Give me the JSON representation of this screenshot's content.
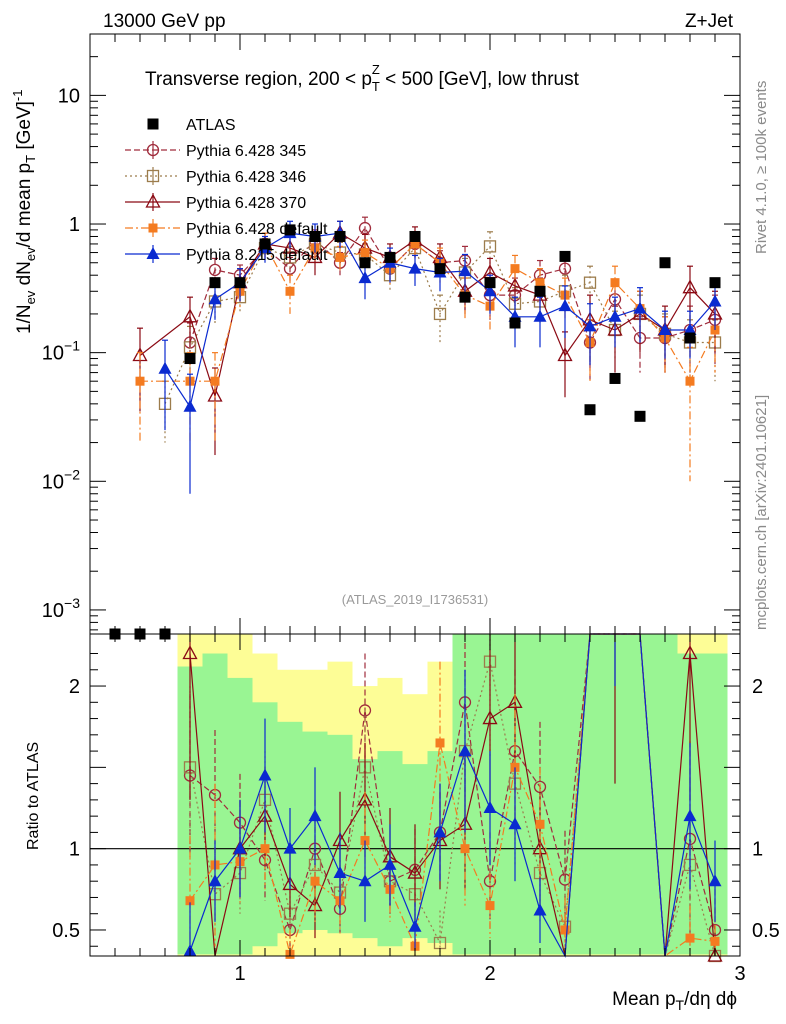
{
  "header": {
    "left": "13000 GeV pp",
    "right": "Z+Jet"
  },
  "side_labels": {
    "rivet": "Rivet 4.1.0, ≥ 100k events",
    "mcplots": "mcplots.cern.ch [arXiv:2401.10621]"
  },
  "watermark": "(ATLAS_2019_I1736531)",
  "chart_data": {
    "type": "scatter",
    "title_pre": "Transverse region, 200 < p",
    "title_sub": "T",
    "title_sup": "Z",
    "title_post": " < 500 [GeV], low thrust",
    "ylabel_main": "1/N_ev dN_ev/d mean p_T [GeV]^-1",
    "ylabel_ratio": "Ratio to ATLAS",
    "xlabel": "Mean p_T/dη dϕ",
    "xlim": [
      0.4,
      3.0
    ],
    "ylim_main": [
      0.00065,
      30
    ],
    "ylim_ratio": [
      0.34,
      2.32
    ],
    "main_ticks": [
      {
        "value": 10,
        "base": "10",
        "exp": ""
      },
      {
        "value": 1,
        "base": "1",
        "exp": ""
      },
      {
        "value": 0.1,
        "base": "10",
        "exp": "−1"
      },
      {
        "value": 0.01,
        "base": "10",
        "exp": "−2"
      },
      {
        "value": 0.001,
        "base": "10",
        "exp": "−3"
      }
    ],
    "ratio_ticks": [
      {
        "value": 0.5,
        "label": "0.5"
      },
      {
        "value": 1,
        "label": "1"
      },
      {
        "value": 2,
        "label": "2"
      }
    ],
    "x_ticks": [
      {
        "value": 1,
        "label": "1"
      },
      {
        "value": 2,
        "label": "2"
      },
      {
        "value": 3,
        "label": "3"
      }
    ],
    "x": [
      0.5,
      0.6,
      0.7,
      0.8,
      0.9,
      1.0,
      1.1,
      1.2,
      1.3,
      1.4,
      1.5,
      1.6,
      1.7,
      1.8,
      1.9,
      2.0,
      2.1,
      2.2,
      2.3,
      2.4,
      2.5,
      2.6,
      2.7,
      2.8,
      2.9
    ],
    "data": {
      "name": "ATLAS",
      "values": [
        0.00065,
        0.00065,
        0.00065,
        0.09,
        0.35,
        0.35,
        0.7,
        0.9,
        0.8,
        0.8,
        0.5,
        0.55,
        0.8,
        0.45,
        0.27,
        0.35,
        0.17,
        0.3,
        0.56,
        0.036,
        0.063,
        0.032,
        0.5,
        0.13,
        0.35
      ]
    },
    "band_ratio": {
      "green_lo": [
        null,
        null,
        null,
        0.35,
        0.35,
        0.35,
        0.4,
        0.48,
        0.5,
        0.48,
        0.45,
        0.4,
        0.45,
        0.42,
        0.35,
        0.35,
        0.35,
        0.35,
        0.35,
        0.35,
        0.35,
        0.35,
        0.35,
        0.35,
        0.35
      ],
      "green_hi": [
        null,
        null,
        null,
        2.12,
        2.2,
        2.05,
        1.9,
        1.78,
        1.72,
        1.7,
        1.55,
        1.6,
        1.52,
        1.6,
        2.32,
        2.32,
        2.32,
        2.32,
        2.32,
        2.32,
        2.32,
        2.32,
        2.32,
        2.2,
        2.2
      ],
      "yellow_lo": [
        null,
        null,
        null,
        0.34,
        0.34,
        0.34,
        0.34,
        0.34,
        0.34,
        0.34,
        0.34,
        0.34,
        0.34,
        0.34,
        0.34,
        0.34,
        0.34,
        0.34,
        0.34,
        0.34,
        0.34,
        0.34,
        0.34,
        0.34,
        0.34
      ],
      "yellow_hi": [
        null,
        null,
        null,
        2.32,
        2.32,
        2.32,
        2.2,
        2.1,
        2.1,
        2.15,
        2.0,
        2.05,
        1.95,
        2.15,
        2.32,
        2.32,
        2.32,
        2.32,
        2.32,
        2.32,
        2.32,
        2.32,
        2.32,
        2.32,
        2.32
      ]
    },
    "series": [
      {
        "name": "Pythia 6.428 345",
        "color": "#a02c3c",
        "marker": "circle-open",
        "dash": "6,3",
        "values": [
          null,
          null,
          null,
          0.12,
          0.44,
          0.4,
          0.65,
          0.45,
          0.75,
          0.5,
          0.93,
          0.45,
          0.7,
          0.5,
          0.52,
          0.28,
          0.28,
          0.4,
          0.45,
          0.12,
          0.26,
          0.13,
          0.13,
          0.15,
          0.18
        ],
        "errors": [
          null,
          null,
          null,
          0.05,
          0.1,
          0.08,
          0.12,
          0.1,
          0.15,
          0.1,
          0.2,
          0.1,
          0.15,
          0.12,
          0.15,
          0.1,
          0.1,
          0.12,
          0.15,
          0.06,
          0.1,
          0.06,
          0.06,
          0.08,
          0.1
        ],
        "ratio": [
          null,
          null,
          null,
          1.45,
          1.33,
          1.16,
          0.93,
          0.5,
          1.0,
          0.63,
          1.85,
          0.8,
          0.87,
          1.1,
          1.9,
          0.8,
          1.6,
          1.38,
          0.81,
          3.3,
          4.1,
          4.1,
          0.26,
          1.06,
          0.5
        ],
        "ratio_err": [
          null,
          null,
          null,
          0.5,
          0.4,
          0.3,
          0.25,
          0.15,
          0.3,
          0.15,
          0.35,
          0.2,
          0.25,
          0.3,
          0.55,
          0.3,
          0.5,
          0.4,
          0.3,
          1.0,
          1.0,
          1.0,
          0.1,
          0.6,
          0.25
        ]
      },
      {
        "name": "Pythia 6.428 346",
        "color": "#9c7c4c",
        "marker": "square-open",
        "dash": "2,3",
        "values": [
          null,
          null,
          0.04,
          0.11,
          0.25,
          0.27,
          0.65,
          0.55,
          0.7,
          0.6,
          0.58,
          0.4,
          0.65,
          0.2,
          0.42,
          0.67,
          0.24,
          0.25,
          0.3,
          0.35,
          0.15,
          0.2,
          0.14,
          0.12,
          0.12
        ],
        "errors": [
          null,
          null,
          0.02,
          0.05,
          0.08,
          0.07,
          0.12,
          0.12,
          0.15,
          0.12,
          0.12,
          0.1,
          0.15,
          0.08,
          0.12,
          0.2,
          0.08,
          0.08,
          0.1,
          0.12,
          0.06,
          0.08,
          0.06,
          0.06,
          0.06
        ],
        "ratio": [
          null,
          null,
          null,
          1.5,
          0.72,
          0.85,
          1.3,
          0.6,
          0.9,
          0.73,
          1.5,
          0.8,
          0.72,
          0.42,
          1.6,
          2.15,
          1.4,
          0.85,
          0.52,
          4.0,
          4.0,
          3.8,
          0.3,
          0.9,
          0.34
        ],
        "ratio_err": [
          null,
          null,
          null,
          0.5,
          0.25,
          0.25,
          0.3,
          0.2,
          0.25,
          0.2,
          0.35,
          0.2,
          0.25,
          0.2,
          0.5,
          0.6,
          0.5,
          0.3,
          0.2,
          1.0,
          1.0,
          1.0,
          0.1,
          0.5,
          0.15
        ]
      },
      {
        "name": "Pythia 6.428 370",
        "color": "#8b0a14",
        "marker": "triangle-open",
        "dash": "",
        "values": [
          null,
          0.095,
          null,
          0.19,
          0.046,
          0.35,
          0.7,
          0.65,
          0.55,
          0.85,
          0.65,
          0.55,
          0.75,
          0.55,
          0.3,
          0.42,
          0.33,
          0.28,
          0.095,
          0.18,
          0.15,
          0.2,
          0.15,
          0.32,
          0.2
        ],
        "errors": [
          null,
          0.06,
          null,
          0.08,
          0.03,
          0.1,
          0.15,
          0.15,
          0.15,
          0.2,
          0.18,
          0.15,
          0.2,
          0.15,
          0.1,
          0.12,
          0.1,
          0.1,
          0.05,
          0.1,
          0.08,
          0.1,
          0.08,
          0.15,
          0.1
        ],
        "ratio": [
          null,
          null,
          null,
          2.2,
          0.13,
          1.0,
          1.2,
          0.78,
          0.65,
          1.05,
          1.3,
          0.95,
          0.85,
          1.05,
          1.15,
          1.8,
          1.9,
          1.0,
          0.17,
          5.0,
          2.4,
          4.0,
          0.3,
          2.2,
          0.34
        ],
        "ratio_err": [
          null,
          null,
          null,
          0.9,
          0.1,
          0.3,
          0.3,
          0.2,
          0.2,
          0.3,
          0.35,
          0.3,
          0.3,
          0.3,
          0.4,
          0.55,
          0.55,
          0.35,
          0.1,
          1.0,
          1.0,
          1.0,
          0.1,
          0.9,
          0.15
        ]
      },
      {
        "name": "Pythia 6.428 default",
        "color": "#f47b20",
        "marker": "square-filled",
        "dash": "8,3,2,3",
        "values": [
          null,
          0.06,
          null,
          0.06,
          0.06,
          0.3,
          0.7,
          0.3,
          0.65,
          0.55,
          0.6,
          0.45,
          0.7,
          0.5,
          0.28,
          0.23,
          0.45,
          0.35,
          0.28,
          0.12,
          0.35,
          0.22,
          0.13,
          0.06,
          0.15
        ],
        "errors": [
          null,
          0.04,
          null,
          0.04,
          0.04,
          0.08,
          0.15,
          0.1,
          0.15,
          0.12,
          0.15,
          0.12,
          0.15,
          0.15,
          0.1,
          0.08,
          0.12,
          0.1,
          0.1,
          0.06,
          0.12,
          0.08,
          0.06,
          0.05,
          0.08
        ],
        "ratio": [
          null,
          null,
          null,
          0.68,
          0.9,
          0.92,
          1.0,
          0.35,
          0.8,
          0.68,
          1.05,
          0.75,
          0.4,
          1.65,
          1.0,
          0.65,
          1.5,
          1.15,
          0.5,
          3.3,
          5.5,
          6.8,
          0.26,
          0.45,
          0.43
        ],
        "ratio_err": [
          null,
          null,
          null,
          0.4,
          0.5,
          0.25,
          0.25,
          0.15,
          0.25,
          0.2,
          0.3,
          0.2,
          0.15,
          0.5,
          0.35,
          0.2,
          0.45,
          0.35,
          0.2,
          1.0,
          1.0,
          1.0,
          0.1,
          0.2,
          0.2
        ]
      },
      {
        "name": "Pythia 8.215 default",
        "color": "#0a2ad0",
        "marker": "triangle-filled",
        "dash": "",
        "values": [
          null,
          null,
          0.075,
          0.038,
          0.26,
          0.35,
          0.65,
          0.85,
          0.8,
          0.85,
          0.38,
          0.5,
          0.45,
          0.42,
          0.43,
          0.3,
          0.19,
          0.19,
          0.23,
          0.16,
          0.19,
          0.22,
          0.15,
          0.15,
          0.25
        ],
        "errors": [
          null,
          null,
          0.05,
          0.03,
          0.08,
          0.1,
          0.15,
          0.2,
          0.2,
          0.2,
          0.12,
          0.15,
          0.12,
          0.12,
          0.15,
          0.1,
          0.08,
          0.08,
          0.1,
          0.08,
          0.08,
          0.1,
          0.06,
          0.06,
          0.1
        ],
        "ratio": [
          null,
          null,
          null,
          0.37,
          0.8,
          1.0,
          1.45,
          1.0,
          1.2,
          0.85,
          0.8,
          0.9,
          0.52,
          1.1,
          1.6,
          1.25,
          1.15,
          0.62,
          0.2,
          6.0,
          3.0,
          6.0,
          0.3,
          1.2,
          0.8
        ],
        "ratio_err": [
          null,
          null,
          null,
          0.3,
          0.25,
          0.3,
          0.35,
          0.25,
          0.3,
          0.25,
          0.25,
          0.25,
          0.15,
          0.3,
          0.5,
          0.35,
          0.35,
          0.2,
          0.15,
          1.0,
          1.0,
          1.0,
          0.1,
          0.45,
          0.25
        ]
      }
    ]
  }
}
